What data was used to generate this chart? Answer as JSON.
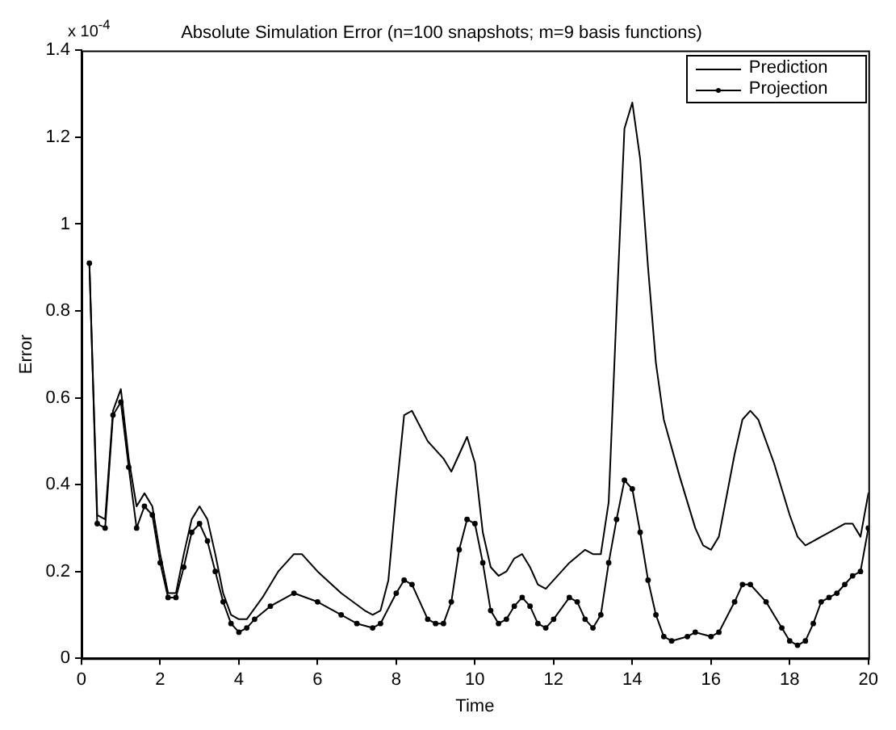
{
  "chart_data": {
    "type": "line",
    "title": "Absolute Simulation Error (n=100 snapshots; m=9 basis functions)",
    "xlabel": "Time",
    "ylabel": "Error",
    "annotations": [
      "x 10$^{-4}$"
    ],
    "xlim": [
      0,
      20
    ],
    "xticks": [
      0,
      2,
      4,
      6,
      8,
      10,
      12,
      14,
      16,
      18,
      20
    ],
    "ylim": [
      0,
      1.4
    ],
    "yticks": [
      0,
      0.2,
      0.4,
      0.6,
      0.8,
      1,
      1.2,
      1.4
    ],
    "grid": false,
    "legend": "top right",
    "series": [
      {
        "name": "Prediction",
        "color": "#000000",
        "marker": "none",
        "x": [
          0.2,
          0.4,
          0.6,
          0.8,
          1.0,
          1.2,
          1.4,
          1.6,
          1.8,
          2.0,
          2.2,
          2.4,
          2.6,
          2.8,
          3.0,
          3.2,
          3.4,
          3.6,
          3.8,
          4.0,
          4.2,
          4.6,
          5.0,
          5.4,
          5.6,
          6.0,
          6.6,
          7.2,
          7.4,
          7.6,
          7.8,
          8.0,
          8.2,
          8.4,
          8.8,
          9.2,
          9.4,
          9.6,
          9.8,
          10.0,
          10.2,
          10.4,
          10.6,
          10.8,
          11.0,
          11.2,
          11.4,
          11.6,
          11.8,
          12.0,
          12.4,
          12.8,
          13.0,
          13.2,
          13.4,
          13.6,
          13.8,
          14.0,
          14.2,
          14.4,
          14.6,
          14.8,
          15.2,
          15.6,
          15.8,
          16.0,
          16.2,
          16.6,
          16.8,
          17.0,
          17.2,
          17.6,
          18.0,
          18.2,
          18.4,
          18.6,
          19.0,
          19.4,
          19.6,
          19.8,
          20.0
        ],
        "values": [
          0.91,
          0.33,
          0.32,
          0.57,
          0.62,
          0.46,
          0.35,
          0.38,
          0.35,
          0.24,
          0.15,
          0.15,
          0.24,
          0.32,
          0.35,
          0.32,
          0.24,
          0.15,
          0.1,
          0.09,
          0.09,
          0.14,
          0.2,
          0.24,
          0.24,
          0.2,
          0.15,
          0.11,
          0.1,
          0.11,
          0.18,
          0.38,
          0.56,
          0.57,
          0.5,
          0.46,
          0.43,
          0.47,
          0.51,
          0.45,
          0.29,
          0.21,
          0.19,
          0.2,
          0.23,
          0.24,
          0.21,
          0.17,
          0.16,
          0.18,
          0.22,
          0.25,
          0.24,
          0.24,
          0.36,
          0.8,
          1.22,
          1.28,
          1.15,
          0.9,
          0.68,
          0.55,
          0.42,
          0.3,
          0.26,
          0.25,
          0.28,
          0.47,
          0.55,
          0.57,
          0.55,
          0.45,
          0.33,
          0.28,
          0.26,
          0.27,
          0.29,
          0.31,
          0.31,
          0.28,
          0.38
        ]
      },
      {
        "name": "Projection",
        "color": "#000000",
        "marker": "circle",
        "x": [
          0.2,
          0.4,
          0.6,
          0.8,
          1.0,
          1.2,
          1.4,
          1.6,
          1.8,
          2.0,
          2.2,
          2.4,
          2.6,
          2.8,
          3.0,
          3.2,
          3.4,
          3.6,
          3.8,
          4.0,
          4.2,
          4.4,
          4.8,
          5.4,
          6.0,
          6.6,
          7.0,
          7.4,
          7.6,
          8.0,
          8.2,
          8.4,
          8.8,
          9.0,
          9.2,
          9.4,
          9.6,
          9.8,
          10.0,
          10.2,
          10.4,
          10.6,
          10.8,
          11.0,
          11.2,
          11.4,
          11.6,
          11.8,
          12.0,
          12.4,
          12.6,
          12.8,
          13.0,
          13.2,
          13.4,
          13.6,
          13.8,
          14.0,
          14.2,
          14.4,
          14.6,
          14.8,
          15.0,
          15.4,
          15.6,
          16.0,
          16.2,
          16.6,
          16.8,
          17.0,
          17.4,
          17.8,
          18.0,
          18.2,
          18.4,
          18.6,
          18.8,
          19.0,
          19.2,
          19.4,
          19.6,
          19.8,
          20.0
        ],
        "values": [
          0.91,
          0.31,
          0.3,
          0.56,
          0.59,
          0.44,
          0.3,
          0.35,
          0.33,
          0.22,
          0.14,
          0.14,
          0.21,
          0.29,
          0.31,
          0.27,
          0.2,
          0.13,
          0.08,
          0.06,
          0.07,
          0.09,
          0.12,
          0.15,
          0.13,
          0.1,
          0.08,
          0.07,
          0.08,
          0.15,
          0.18,
          0.17,
          0.09,
          0.08,
          0.08,
          0.13,
          0.25,
          0.32,
          0.31,
          0.22,
          0.11,
          0.08,
          0.09,
          0.12,
          0.14,
          0.12,
          0.08,
          0.07,
          0.09,
          0.14,
          0.13,
          0.09,
          0.07,
          0.1,
          0.22,
          0.32,
          0.41,
          0.39,
          0.29,
          0.18,
          0.1,
          0.05,
          0.04,
          0.05,
          0.06,
          0.05,
          0.06,
          0.13,
          0.17,
          0.17,
          0.13,
          0.07,
          0.04,
          0.03,
          0.04,
          0.08,
          0.13,
          0.14,
          0.15,
          0.17,
          0.19,
          0.2,
          0.3
        ]
      }
    ]
  }
}
